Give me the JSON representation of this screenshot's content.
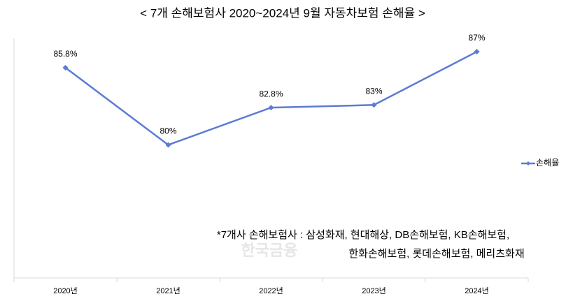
{
  "chart_data": {
    "type": "line",
    "title": "< 7개 손해보험사 2020~2024년 9월 자동차보험 손해율 >",
    "categories": [
      "2020년",
      "2021년",
      "2022년",
      "2023년",
      "2024년"
    ],
    "series": [
      {
        "name": "손해율",
        "color": "#5b7bd5",
        "values": [
          85.8,
          80,
          82.8,
          83,
          87
        ],
        "value_labels": [
          "85.8%",
          "80%",
          "82.8%",
          "83%",
          "87%"
        ]
      }
    ],
    "ylim": [
      70,
      88
    ],
    "legend": "right",
    "annotations": [
      "*7개사 손해보험사 : 삼성화재, 현대해상, DB손해보험, KB손해보험,",
      "한화손해보험, 롯데손해보험, 메리츠화재"
    ],
    "watermark": "한국금융"
  }
}
